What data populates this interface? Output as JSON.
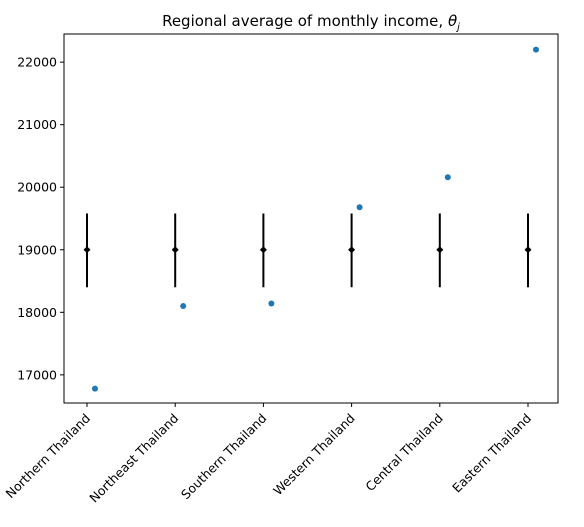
{
  "chart_data": {
    "type": "scatter",
    "title": "Regional average of monthly income, ",
    "title_symbol": "θ",
    "title_subscript": "j",
    "xlabel": "",
    "ylabel": "",
    "categories": [
      "Northern Thailand",
      "Northeast Thailand",
      "Southern Thailand",
      "Western Thailand",
      "Central Thailand",
      "Eastern Thailand"
    ],
    "ylim": [
      16550,
      22450
    ],
    "yticks": [
      17000,
      18000,
      19000,
      20000,
      21000,
      22000
    ],
    "grid": false,
    "series": [
      {
        "marker": "dot",
        "color": "#1f77b4",
        "values": [
          16780,
          18100,
          18140,
          19680,
          20160,
          22200
        ]
      },
      {
        "marker": "diamond-errorbar",
        "color": "#000000",
        "values": [
          19000,
          19000,
          19000,
          19000,
          19000,
          19000
        ],
        "error_low": [
          18400,
          18400,
          18400,
          18400,
          18400,
          18400
        ],
        "error_high": [
          19580,
          19580,
          19580,
          19580,
          19580,
          19580
        ]
      }
    ]
  }
}
